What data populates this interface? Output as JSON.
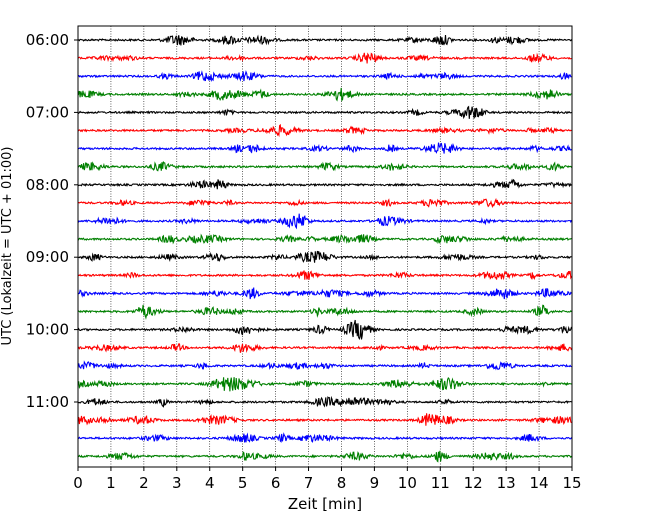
{
  "chart_data": {
    "type": "line",
    "title": "",
    "xlabel": "Zeit  [min]",
    "ylabel": "UTC (Lokalzeit = UTC + 01:00)",
    "xlim": [
      0,
      15
    ],
    "x_ticks": [
      0,
      1,
      2,
      3,
      4,
      5,
      6,
      7,
      8,
      9,
      10,
      11,
      12,
      13,
      14,
      15
    ],
    "y_tick_labels": [
      "06:00",
      "07:00",
      "08:00",
      "09:00",
      "10:00",
      "11:00"
    ],
    "x_grid": true,
    "x_grid_style": "dotted",
    "legend": "none",
    "trace_colors": [
      "#000000",
      "#ff0000",
      "#0000ff",
      "#008000"
    ],
    "trace_interval_minutes": 15,
    "series": [
      {
        "start": "06:00",
        "color": "#000000"
      },
      {
        "start": "06:15",
        "color": "#ff0000"
      },
      {
        "start": "06:30",
        "color": "#0000ff"
      },
      {
        "start": "06:45",
        "color": "#008000"
      },
      {
        "start": "07:00",
        "color": "#000000"
      },
      {
        "start": "07:15",
        "color": "#ff0000"
      },
      {
        "start": "07:30",
        "color": "#0000ff"
      },
      {
        "start": "07:45",
        "color": "#008000"
      },
      {
        "start": "08:00",
        "color": "#000000"
      },
      {
        "start": "08:15",
        "color": "#ff0000"
      },
      {
        "start": "08:30",
        "color": "#0000ff"
      },
      {
        "start": "08:45",
        "color": "#008000"
      },
      {
        "start": "09:00",
        "color": "#000000"
      },
      {
        "start": "09:15",
        "color": "#ff0000"
      },
      {
        "start": "09:30",
        "color": "#0000ff"
      },
      {
        "start": "09:45",
        "color": "#008000"
      },
      {
        "start": "10:00",
        "color": "#000000"
      },
      {
        "start": "10:15",
        "color": "#ff0000"
      },
      {
        "start": "10:30",
        "color": "#0000ff"
      },
      {
        "start": "10:45",
        "color": "#008000"
      },
      {
        "start": "11:00",
        "color": "#000000"
      },
      {
        "start": "11:15",
        "color": "#ff0000"
      },
      {
        "start": "11:30",
        "color": "#0000ff"
      },
      {
        "start": "11:45",
        "color": "#008000"
      }
    ]
  }
}
